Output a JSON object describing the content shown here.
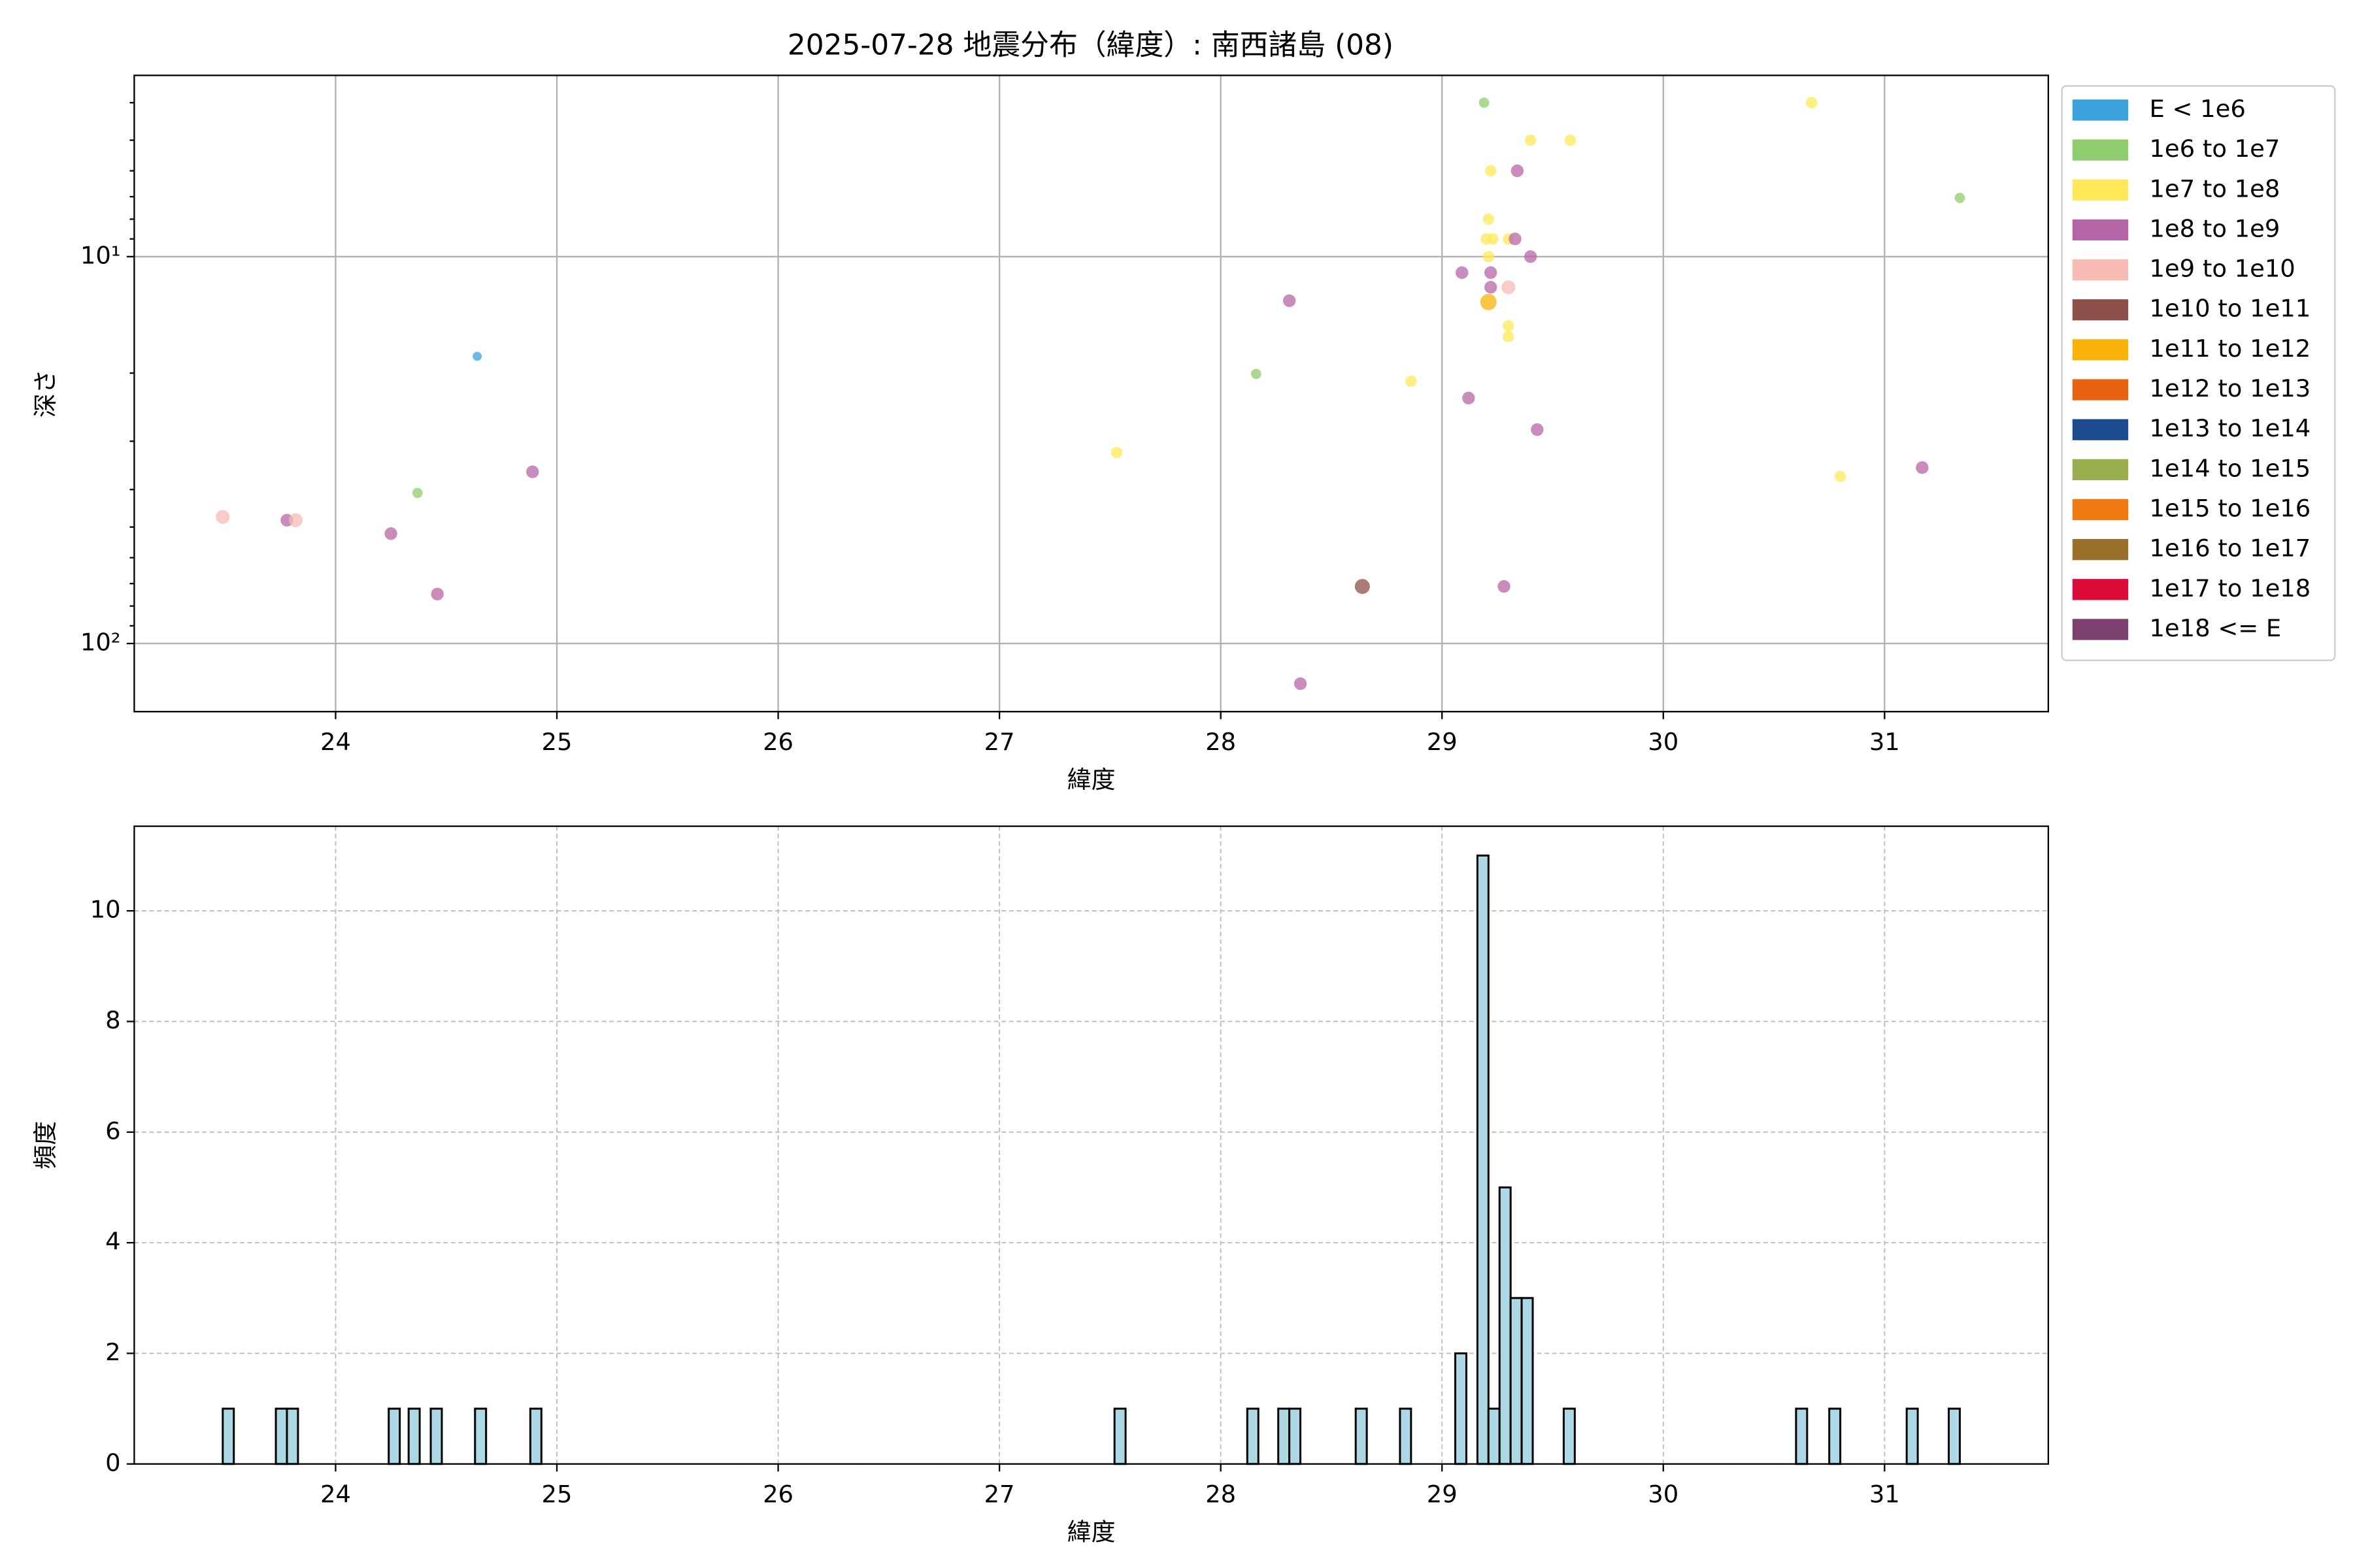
{
  "chart_data": [
    {
      "type": "scatter",
      "title": "2025-07-28 地震分布（緯度）: 南西諸島 (08)",
      "x_label": "緯度",
      "y_label": "深さ",
      "xlim": [
        23.09,
        31.74
      ],
      "xticks": [
        24,
        25,
        26,
        27,
        28,
        29,
        30,
        31
      ],
      "ylim": [
        3.4,
        150
      ],
      "yscale": "log",
      "y_inverted": true,
      "yticks": [
        {
          "value": 10,
          "label": "10¹"
        },
        {
          "value": 100,
          "label": "10²"
        }
      ],
      "yminorticks": [
        4,
        5,
        6,
        7,
        8,
        9,
        20,
        30,
        40,
        50,
        60,
        70,
        80,
        90
      ],
      "grid": true,
      "legend": "outside-right",
      "series": [
        {
          "name": "E < 1e6",
          "color": "#3ca2dc",
          "x": [
            24.64
          ],
          "values": [
            18.1
          ]
        },
        {
          "name": "1e6 to 1e7",
          "color": "#8fcc6e",
          "x": [
            29.19,
            31.34,
            28.16,
            24.37
          ],
          "values": [
            4.0,
            7.05,
            20.1,
            40.8
          ]
        },
        {
          "name": "1e7 to 1e8",
          "color": "#ffe95a",
          "x": [
            30.67,
            29.4,
            29.58,
            29.22,
            29.21,
            29.2,
            29.23,
            29.3,
            29.21,
            29.3,
            29.3,
            28.86,
            27.53,
            30.8
          ],
          "values": [
            4.0,
            5.0,
            5.0,
            6.0,
            8.0,
            9.0,
            9.0,
            9.0,
            10,
            15.1,
            16.1,
            21.0,
            32.1,
            37.0
          ]
        },
        {
          "name": "1e8 to 1e9",
          "color": "#b565a7",
          "x": [
            29.34,
            29.33,
            29.4,
            29.09,
            29.22,
            29.22,
            28.31,
            29.12,
            29.43,
            31.17,
            24.89,
            23.78,
            24.25,
            24.46,
            29.28,
            28.36
          ],
          "values": [
            6.0,
            9.0,
            10,
            11.0,
            11.0,
            12.0,
            13.0,
            23.2,
            28.0,
            35.1,
            36.0,
            48.0,
            52.0,
            74.5,
            71.2,
            127
          ]
        },
        {
          "name": "1e9 to 1e10",
          "color": "#f7bbb4",
          "x": [
            29.3,
            23.49,
            23.82
          ],
          "values": [
            12.0,
            47.1,
            48.0
          ]
        },
        {
          "name": "1e10 to 1e11",
          "color": "#8d4f4a",
          "x": [
            28.64
          ],
          "values": [
            71.2
          ]
        },
        {
          "name": "1e11 to 1e12",
          "color": "#f9b208",
          "x": [
            29.21
          ],
          "values": [
            13.1
          ]
        },
        {
          "name": "1e12 to 1e13",
          "color": "#e86310",
          "x": [],
          "values": []
        },
        {
          "name": "1e13 to 1e14",
          "color": "#1b4a8f",
          "x": [],
          "values": []
        },
        {
          "name": "1e14 to 1e15",
          "color": "#9aad4f",
          "x": [],
          "values": []
        },
        {
          "name": "1e15 to 1e16",
          "color": "#f07a12",
          "x": [],
          "values": []
        },
        {
          "name": "1e16 to 1e17",
          "color": "#9a6f2a",
          "x": [],
          "values": []
        },
        {
          "name": "1e17 to 1e18",
          "color": "#dc0b3a",
          "x": [],
          "values": []
        },
        {
          "name": "1e18 <= E",
          "color": "#7d3f6e",
          "x": [],
          "values": []
        }
      ]
    },
    {
      "type": "histogram",
      "x_label": "緯度",
      "y_label": "頻度",
      "xlim": [
        23.09,
        31.74
      ],
      "xticks": [
        24,
        25,
        26,
        27,
        28,
        29,
        30,
        31
      ],
      "ylim": [
        0,
        11.53
      ],
      "yticks": [
        0,
        2,
        4,
        6,
        8,
        10
      ],
      "grid": "dashed",
      "color": "#add8e6",
      "edgecolor": "#000000",
      "bins": [
        23.49,
        23.54,
        23.73,
        23.78,
        23.83,
        24.24,
        24.29,
        24.33,
        24.38,
        24.43,
        24.48,
        24.63,
        24.68,
        24.88,
        24.93,
        27.52,
        27.57,
        28.12,
        28.17,
        28.26,
        28.31,
        28.36,
        28.61,
        28.66,
        28.81,
        28.86,
        29.06,
        29.11,
        29.16,
        29.21,
        29.26,
        29.31,
        29.36,
        29.41,
        29.55,
        29.6,
        30.6,
        30.65,
        30.75,
        30.8,
        31.1,
        31.15,
        31.29,
        31.34
      ],
      "values": [
        1,
        0,
        1,
        1,
        0,
        1,
        0,
        1,
        0,
        1,
        0,
        1,
        0,
        1,
        0,
        1,
        0,
        1,
        0,
        1,
        1,
        0,
        1,
        0,
        1,
        0,
        2,
        0,
        11,
        1,
        5,
        3,
        3,
        0,
        1,
        0,
        1,
        0,
        1,
        0,
        1,
        0,
        1
      ]
    }
  ]
}
